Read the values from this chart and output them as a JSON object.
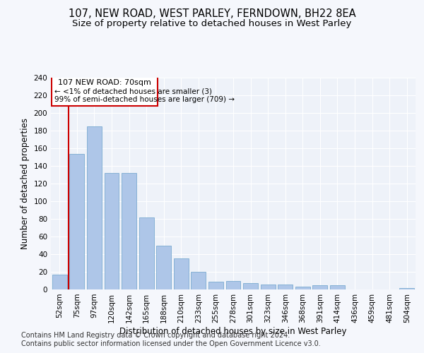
{
  "title": "107, NEW ROAD, WEST PARLEY, FERNDOWN, BH22 8EA",
  "subtitle": "Size of property relative to detached houses in West Parley",
  "xlabel": "Distribution of detached houses by size in West Parley",
  "ylabel": "Number of detached properties",
  "categories": [
    "52sqm",
    "75sqm",
    "97sqm",
    "120sqm",
    "142sqm",
    "165sqm",
    "188sqm",
    "210sqm",
    "233sqm",
    "255sqm",
    "278sqm",
    "301sqm",
    "323sqm",
    "346sqm",
    "368sqm",
    "391sqm",
    "414sqm",
    "436sqm",
    "459sqm",
    "481sqm",
    "504sqm"
  ],
  "values": [
    17,
    154,
    185,
    132,
    132,
    82,
    50,
    35,
    20,
    9,
    10,
    7,
    6,
    6,
    3,
    5,
    5,
    0,
    0,
    0,
    2
  ],
  "bar_color": "#aec6e8",
  "bar_edge_color": "#7aaad0",
  "highlight_line_color": "#cc0000",
  "annotation_text_line1": "107 NEW ROAD: 70sqm",
  "annotation_text_line2": "← <1% of detached houses are smaller (3)",
  "annotation_text_line3": "99% of semi-detached houses are larger (709) →",
  "annotation_box_color": "#cc0000",
  "ylim": [
    0,
    240
  ],
  "yticks": [
    0,
    20,
    40,
    60,
    80,
    100,
    120,
    140,
    160,
    180,
    200,
    220,
    240
  ],
  "footer_line1": "Contains HM Land Registry data © Crown copyright and database right 2024.",
  "footer_line2": "Contains public sector information licensed under the Open Government Licence v3.0.",
  "bg_color": "#eef2f9",
  "grid_color": "#ffffff",
  "fig_bg_color": "#f5f7fc",
  "title_fontsize": 10.5,
  "subtitle_fontsize": 9.5,
  "axis_label_fontsize": 8.5,
  "tick_fontsize": 7.5,
  "footer_fontsize": 7,
  "ann_fontsize": 8
}
